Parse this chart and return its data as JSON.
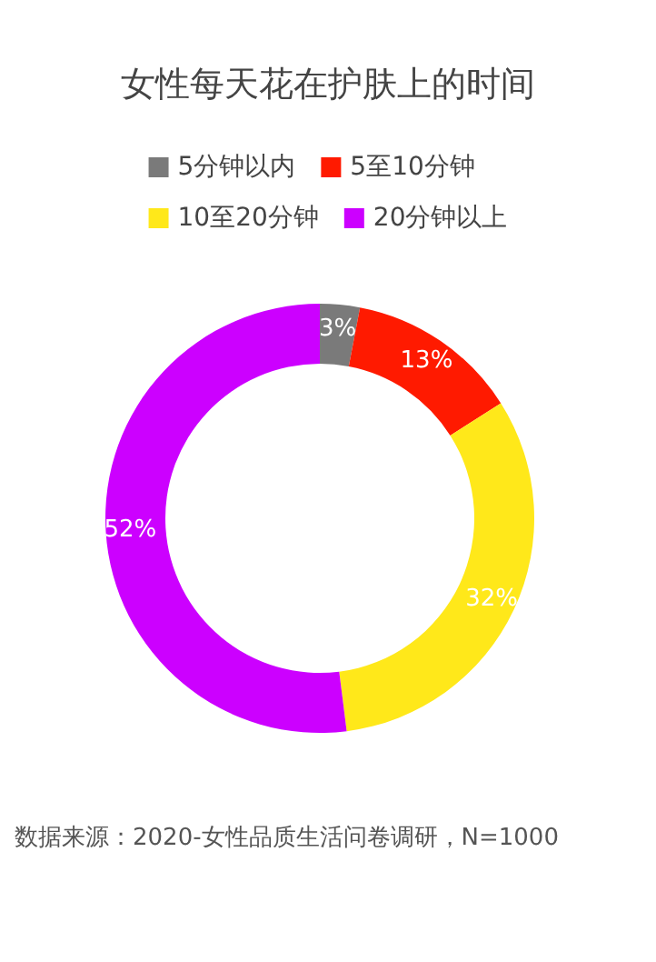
{
  "chart_data": {
    "type": "donut",
    "title": "女性每天花在护肤上的时间",
    "categories": [
      "5分钟以内",
      "5至10分钟",
      "10至20分钟",
      "20分钟以上"
    ],
    "values": [
      3,
      13,
      32,
      52
    ],
    "colors": [
      "#7a7a7a",
      "#ff1a00",
      "#ffe81a",
      "#cc00ff"
    ],
    "value_labels": [
      "3%",
      "13%",
      "32%",
      "52%"
    ],
    "legend": "top",
    "annotations": [
      "数据来源：2020-女性品质生活问卷调研，N=1000"
    ]
  }
}
